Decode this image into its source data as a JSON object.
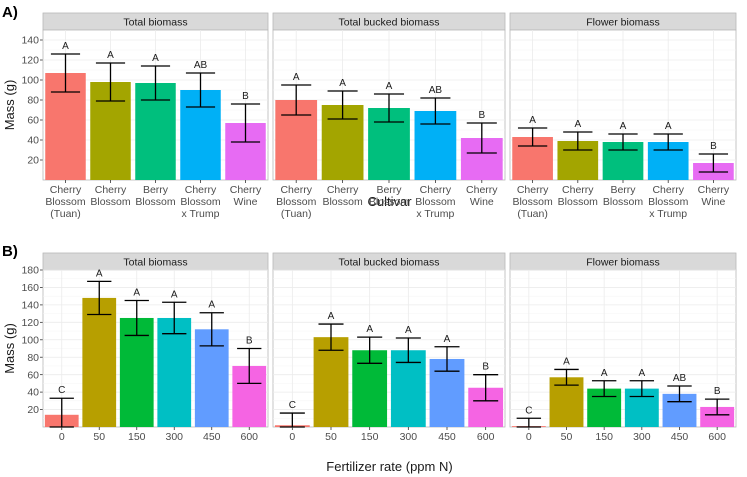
{
  "chart_data": [
    {
      "label": "A)",
      "type": "bar",
      "ylabel": "Mass (g)",
      "xlabel": "Cultivar",
      "ylim": [
        0,
        150
      ],
      "yticks": [
        20,
        40,
        60,
        80,
        100,
        120,
        140
      ],
      "categories": [
        "Cherry\nBlossom\n(Tuan)",
        "Cherry\nBlossom",
        "Berry\nBlossom",
        "Cherry\nBlossom\nx Trump",
        "Cherry\nWine"
      ],
      "colors": [
        "#F8766D",
        "#A3A500",
        "#00BF7D",
        "#00B0F6",
        "#E76BF3"
      ],
      "facets": [
        {
          "title": "Total biomass",
          "values": [
            107,
            98,
            97,
            90,
            57
          ],
          "err": [
            19,
            19,
            17,
            17,
            19
          ],
          "letters": [
            "A",
            "A",
            "A",
            "AB",
            "B"
          ]
        },
        {
          "title": "Total bucked biomass",
          "values": [
            80,
            75,
            72,
            69,
            42
          ],
          "err": [
            15,
            14,
            14,
            13,
            15
          ],
          "letters": [
            "A",
            "A",
            "A",
            "AB",
            "B"
          ]
        },
        {
          "title": "Flower biomass",
          "values": [
            43,
            39,
            38,
            38,
            17
          ],
          "err": [
            9,
            9,
            8,
            8,
            9
          ],
          "letters": [
            "A",
            "A",
            "A",
            "A",
            "B"
          ]
        }
      ]
    },
    {
      "label": "B)",
      "type": "bar",
      "ylabel": "Mass (g)",
      "xlabel": "Fertilizer rate (ppm N)",
      "ylim": [
        0,
        180
      ],
      "yticks": [
        20,
        40,
        60,
        80,
        100,
        120,
        140,
        160,
        180
      ],
      "categories": [
        "0",
        "50",
        "150",
        "300",
        "450",
        "600"
      ],
      "colors": [
        "#F8766D",
        "#B79F00",
        "#00BA38",
        "#00BFC4",
        "#619CFF",
        "#F564E3"
      ],
      "facets": [
        {
          "title": "Total biomass",
          "values": [
            14,
            148,
            125,
            125,
            112,
            70
          ],
          "err": [
            19,
            19,
            20,
            18,
            19,
            20
          ],
          "letters": [
            "C",
            "A",
            "A",
            "A",
            "A",
            "B"
          ]
        },
        {
          "title": "Total bucked biomass",
          "values": [
            2,
            103,
            88,
            88,
            78,
            45
          ],
          "err": [
            14,
            15,
            15,
            14,
            14,
            15
          ],
          "letters": [
            "C",
            "A",
            "A",
            "A",
            "A",
            "B"
          ]
        },
        {
          "title": "Flower biomass",
          "values": [
            1,
            57,
            44,
            44,
            38,
            23
          ],
          "err": [
            9,
            9,
            9,
            9,
            9,
            9
          ],
          "letters": [
            "C",
            "A",
            "A",
            "A",
            "AB",
            "B"
          ]
        }
      ]
    }
  ]
}
